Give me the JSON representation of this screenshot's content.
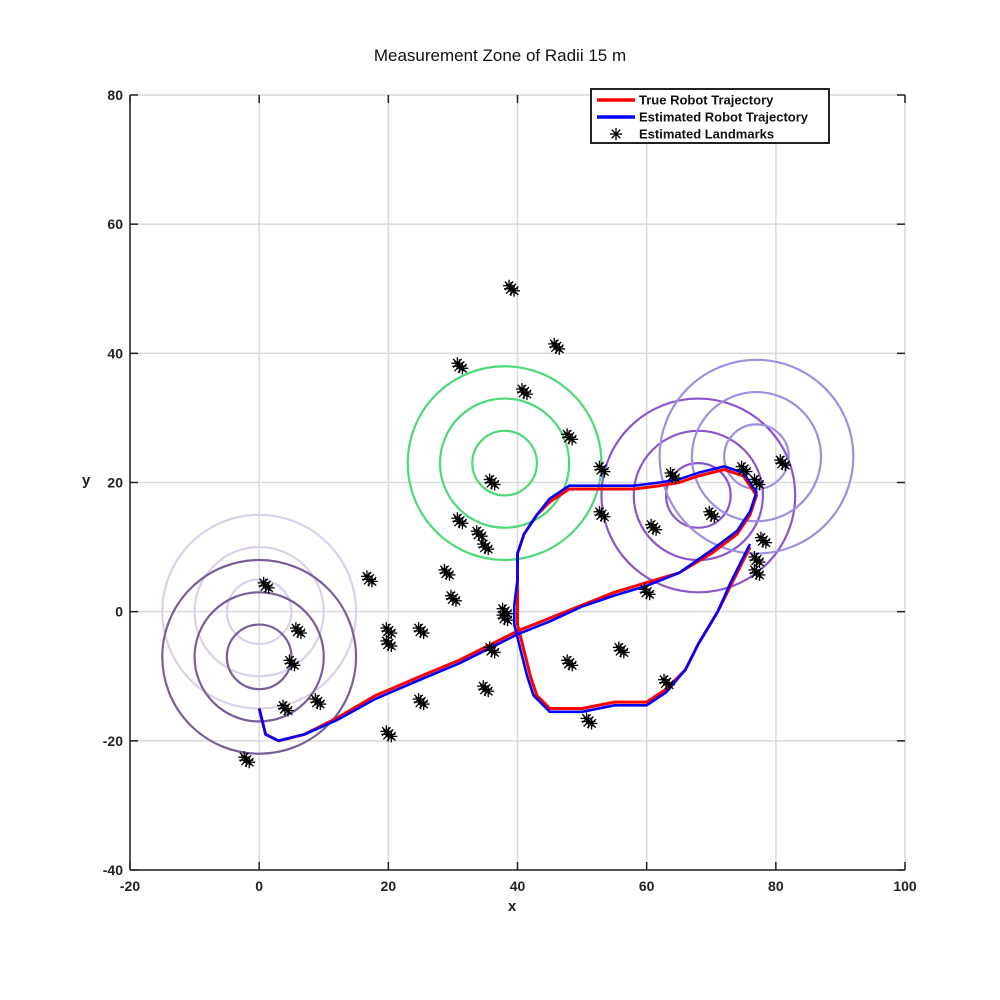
{
  "chart_data": {
    "type": "line",
    "title": "Measurement Zone of Radii 15 m",
    "xlabel": "x",
    "ylabel": "y",
    "xlim": [
      -20,
      100
    ],
    "ylim": [
      -40,
      80
    ],
    "xticks": [
      -20,
      0,
      20,
      40,
      60,
      80,
      100
    ],
    "yticks": [
      -40,
      -20,
      0,
      20,
      40,
      60,
      80
    ],
    "grid": true,
    "legend_position": "top-right",
    "legend": [
      {
        "label": "True Robot Trajectory",
        "color": "#ff0000",
        "style": "line"
      },
      {
        "label": "Estimated Robot Trajectory",
        "color": "#0000ff",
        "style": "line"
      },
      {
        "label": "Estimated Landmarks",
        "color": "#000000",
        "style": "star"
      }
    ],
    "series": [
      {
        "name": "True Robot Trajectory",
        "color": "#ff0000",
        "points": [
          [
            0,
            -15
          ],
          [
            1,
            -19
          ],
          [
            3,
            -20
          ],
          [
            7,
            -19
          ],
          [
            12,
            -16.5
          ],
          [
            18,
            -13
          ],
          [
            25,
            -10
          ],
          [
            31,
            -7.5
          ],
          [
            36,
            -5
          ],
          [
            40,
            -3
          ],
          [
            45,
            -1
          ],
          [
            50,
            1
          ],
          [
            55,
            3
          ],
          [
            60,
            4.5
          ],
          [
            65,
            6
          ],
          [
            70,
            9
          ],
          [
            74,
            12
          ],
          [
            76,
            15
          ],
          [
            77,
            18
          ],
          [
            75,
            21
          ],
          [
            72,
            22
          ],
          [
            68,
            21
          ],
          [
            65,
            20
          ],
          [
            62,
            19.5
          ],
          [
            58,
            19
          ],
          [
            53,
            19
          ],
          [
            48,
            19
          ],
          [
            45,
            17
          ],
          [
            43,
            15
          ],
          [
            41,
            12
          ],
          [
            40,
            9
          ],
          [
            40,
            5
          ],
          [
            40,
            1
          ],
          [
            40,
            -2
          ],
          [
            41,
            -6
          ],
          [
            42,
            -10
          ],
          [
            43,
            -13
          ],
          [
            45,
            -15
          ],
          [
            50,
            -15
          ],
          [
            55,
            -14
          ],
          [
            60,
            -14
          ],
          [
            63,
            -12
          ],
          [
            66,
            -9
          ],
          [
            68,
            -5
          ],
          [
            71,
            0
          ],
          [
            73,
            4
          ],
          [
            75,
            8
          ],
          [
            76,
            10
          ]
        ]
      },
      {
        "name": "Estimated Robot Trajectory",
        "color": "#0000ff",
        "points": [
          [
            0,
            -15
          ],
          [
            1,
            -19
          ],
          [
            3,
            -20
          ],
          [
            7,
            -19
          ],
          [
            12,
            -16.8
          ],
          [
            18,
            -13.5
          ],
          [
            25,
            -10.5
          ],
          [
            31,
            -8
          ],
          [
            36,
            -5.5
          ],
          [
            40,
            -3.5
          ],
          [
            45,
            -1.5
          ],
          [
            50,
            0.8
          ],
          [
            55,
            2.5
          ],
          [
            60,
            4
          ],
          [
            65,
            6
          ],
          [
            70,
            9.5
          ],
          [
            74,
            12.5
          ],
          [
            76,
            15.5
          ],
          [
            77,
            18.5
          ],
          [
            75,
            21.5
          ],
          [
            72,
            22.5
          ],
          [
            68,
            21.5
          ],
          [
            65,
            20.5
          ],
          [
            62,
            20
          ],
          [
            58,
            19.5
          ],
          [
            53,
            19.5
          ],
          [
            48,
            19.5
          ],
          [
            45,
            17.5
          ],
          [
            43,
            15
          ],
          [
            41,
            12
          ],
          [
            40,
            9
          ],
          [
            40,
            5
          ],
          [
            39.5,
            1
          ],
          [
            39.5,
            -2
          ],
          [
            40.5,
            -6
          ],
          [
            41.5,
            -10
          ],
          [
            42.5,
            -13
          ],
          [
            45,
            -15.5
          ],
          [
            50,
            -15.5
          ],
          [
            55,
            -14.5
          ],
          [
            60,
            -14.5
          ],
          [
            63,
            -12.5
          ],
          [
            66,
            -9
          ],
          [
            68,
            -5
          ],
          [
            71,
            0
          ],
          [
            73,
            4.5
          ],
          [
            75,
            8.5
          ],
          [
            76,
            10.5
          ]
        ]
      }
    ],
    "landmarks": [
      [
        -2,
        -23
      ],
      [
        1,
        4
      ],
      [
        6,
        -3
      ],
      [
        5,
        -8
      ],
      [
        9,
        -14
      ],
      [
        4,
        -15
      ],
      [
        17,
        5
      ],
      [
        20,
        -3
      ],
      [
        20,
        -5
      ],
      [
        20,
        -19
      ],
      [
        25,
        -3
      ],
      [
        25,
        -14
      ],
      [
        29,
        6
      ],
      [
        31,
        14
      ],
      [
        30,
        2
      ],
      [
        31,
        38
      ],
      [
        35,
        10
      ],
      [
        35,
        -12
      ],
      [
        36,
        20
      ],
      [
        38,
        -1
      ],
      [
        38,
        0
      ],
      [
        39,
        50
      ],
      [
        41,
        34
      ],
      [
        46,
        41
      ],
      [
        48,
        27
      ],
      [
        48,
        -8
      ],
      [
        51,
        -17
      ],
      [
        53,
        22
      ],
      [
        53,
        15
      ],
      [
        56,
        -6
      ],
      [
        61,
        13
      ],
      [
        60,
        3
      ],
      [
        63,
        -11
      ],
      [
        64,
        21
      ],
      [
        70,
        15
      ],
      [
        75,
        22
      ],
      [
        77,
        20
      ],
      [
        78,
        11
      ],
      [
        77,
        8
      ],
      [
        77,
        6
      ],
      [
        81,
        23
      ],
      [
        36,
        -6
      ],
      [
        34,
        12
      ]
    ],
    "circle_groups": [
      {
        "name": "zone-group-1",
        "color": "#dcd0ea",
        "center": [
          0,
          0
        ],
        "radii": [
          15,
          10,
          5
        ]
      },
      {
        "name": "zone-group-2",
        "color": "#7a5e9a",
        "center": [
          0,
          -7
        ],
        "radii": [
          15,
          10,
          5
        ]
      },
      {
        "name": "zone-group-3",
        "color": "#4cd977",
        "center": [
          38,
          23
        ],
        "radii": [
          15,
          10,
          5
        ]
      },
      {
        "name": "zone-group-4",
        "color": "#8a55cf",
        "center": [
          68,
          18
        ],
        "radii": [
          15,
          10,
          5
        ]
      },
      {
        "name": "zone-group-5",
        "color": "#a08ee0",
        "center": [
          77,
          24
        ],
        "radii": [
          15,
          10,
          5
        ]
      }
    ]
  }
}
